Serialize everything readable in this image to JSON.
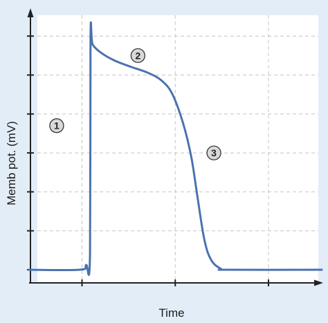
{
  "chart_data": {
    "type": "line",
    "title": "",
    "xlabel": "Time",
    "ylabel": "Memb pot. (mV)",
    "xlim": [
      0,
      10
    ],
    "ylim": [
      0,
      6.5
    ],
    "grid": true,
    "x_ticks": [
      1,
      4.5,
      8
    ],
    "y_ticks": [
      0,
      1,
      2,
      3,
      4,
      5,
      6
    ],
    "tick_labels_shown": false,
    "series": [
      {
        "name": "",
        "color": "#4a72b0",
        "points": [
          [
            -1,
            0
          ],
          [
            0.9,
            0
          ],
          [
            1.15,
            0.12
          ],
          [
            1.3,
            0.4
          ],
          [
            1.32,
            5.95
          ],
          [
            1.4,
            5.78
          ],
          [
            1.7,
            5.58
          ],
          [
            2.2,
            5.38
          ],
          [
            2.8,
            5.22
          ],
          [
            3.5,
            5.05
          ],
          [
            4.0,
            4.85
          ],
          [
            4.4,
            4.5
          ],
          [
            4.8,
            3.75
          ],
          [
            5.1,
            2.9
          ],
          [
            5.35,
            1.8
          ],
          [
            5.6,
            0.75
          ],
          [
            5.85,
            0.25
          ],
          [
            6.2,
            0.03
          ],
          [
            6.5,
            0
          ],
          [
            10,
            0
          ]
        ]
      }
    ],
    "annotations": [
      {
        "label": "1",
        "x": 0.05,
        "y": 3.7
      },
      {
        "label": "2",
        "x": 3.1,
        "y": 5.5
      },
      {
        "label": "3",
        "x": 5.95,
        "y": 3.0
      }
    ]
  }
}
